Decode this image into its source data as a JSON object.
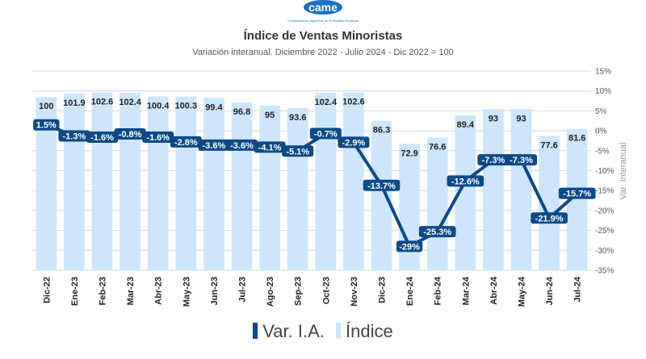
{
  "header": {
    "brand": "came",
    "brand_tagline": "Confederación Argentina de la Mediana Empresa",
    "title": "Índice de Ventas Minoristas",
    "subtitle": "Variación interanual. Diciembre 2022 - Julio 2024 - Dic 2022 = 100"
  },
  "colors": {
    "bar": "#cde6fb",
    "line": "#0b4a86",
    "grid": "#d9d9d9",
    "text": "#222222",
    "brand": "#1a6fc9"
  },
  "chart_data": {
    "type": "bar",
    "categories": [
      "Dic-22",
      "Ene-23",
      "Feb-23",
      "Mar-23",
      "Abr-23",
      "May-23",
      "Jun-23",
      "Jul-23",
      "Ago-23",
      "Sep-23",
      "Oct-23",
      "Nov-23",
      "Dic-23",
      "Ene-24",
      "Feb-24",
      "Mar-24",
      "Abr-24",
      "May-24",
      "Jun-24",
      "Jul-24"
    ],
    "series": [
      {
        "name": "Índice",
        "type": "bar",
        "axis": "left",
        "values": [
          100,
          101.9,
          102.6,
          102.4,
          100.4,
          100.3,
          99.4,
          96.8,
          95,
          93.6,
          102.4,
          102.6,
          86.3,
          72.9,
          76.6,
          89.4,
          93,
          93,
          77.6,
          81.6
        ],
        "labels": [
          "100",
          "101.9",
          "102.6",
          "102.4",
          "100.4",
          "100.3",
          "99.4",
          "96.8",
          "95",
          "93.6",
          "102.4",
          "102.6",
          "86.3",
          "72.9",
          "76.6",
          "89.4",
          "93",
          "93",
          "77.6",
          "81.6"
        ]
      },
      {
        "name": "Var. I.A.",
        "type": "line",
        "axis": "right",
        "values": [
          1.5,
          -1.3,
          -1.6,
          -0.8,
          -1.6,
          -2.8,
          -3.6,
          -3.6,
          -4.1,
          -5.1,
          -0.7,
          -2.9,
          -13.7,
          -29,
          -25.3,
          -12.6,
          -7.3,
          -7.3,
          -21.9,
          -15.7
        ],
        "labels": [
          "1.5%",
          "-1.3%",
          "-1.6%",
          "-0.8%",
          "-1.6%",
          "-2.8%",
          "-3.6%",
          "-3.6%",
          "-4.1%",
          "-5.1%",
          "-0.7%",
          "-2.9%",
          "-13.7%",
          "-29%",
          "-25.3%",
          "-12.6%",
          "-7.3%",
          "-7.3%",
          "-21.9%",
          "-15.7%"
        ]
      }
    ],
    "y_left_range": [
      0,
      115
    ],
    "y_right": {
      "label": "Var. Interanual",
      "range": [
        -35,
        15
      ],
      "ticks": [
        "15%",
        "10%",
        "5%",
        "0%",
        "-5%",
        "-10%",
        "-15%",
        "-20%",
        "-25%",
        "-30%",
        "-35%"
      ]
    },
    "grid": true,
    "legend_position": "bottom",
    "legend": [
      {
        "name": "Var. I.A.",
        "color": "#0b4a86"
      },
      {
        "name": "Índice",
        "color": "#cde6fb"
      }
    ]
  }
}
